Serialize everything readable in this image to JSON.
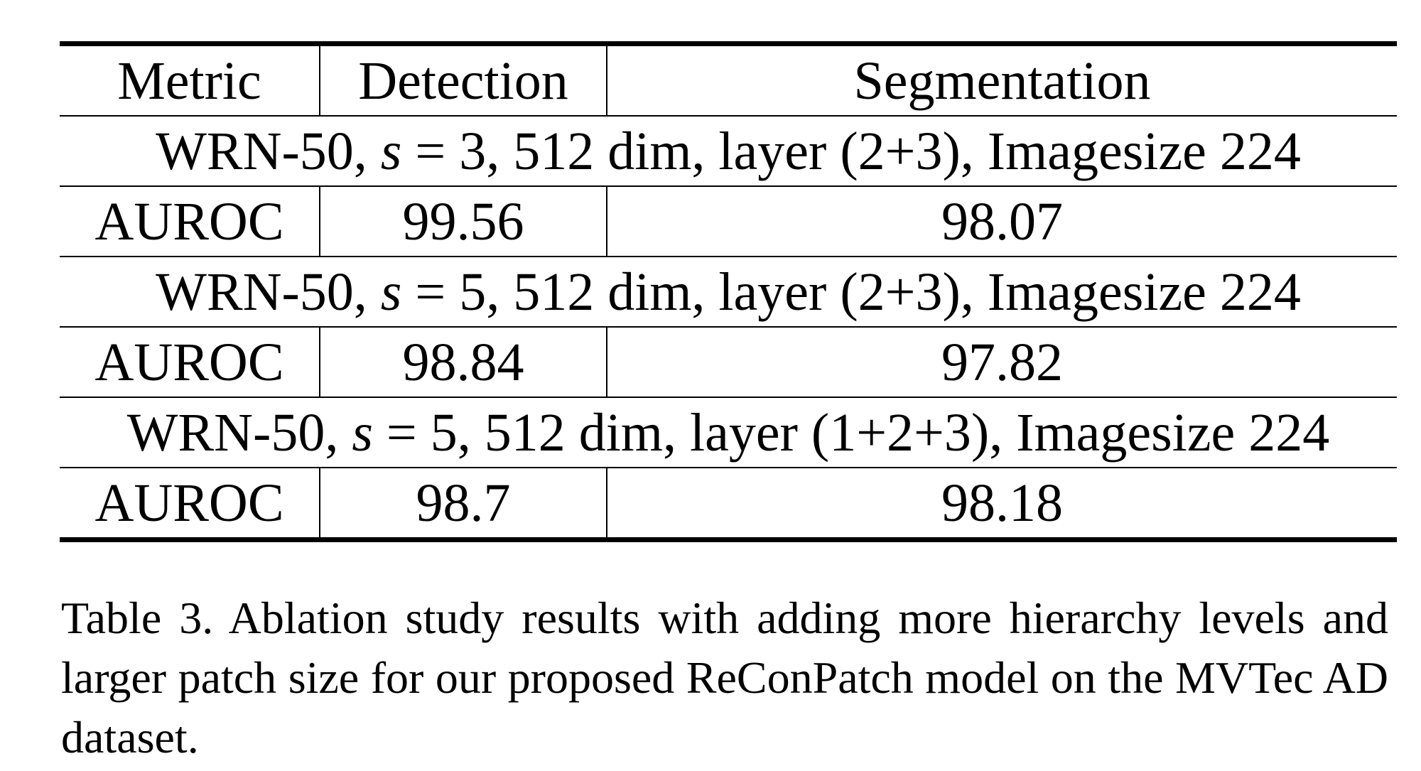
{
  "table": {
    "header": {
      "metric": "Metric",
      "detection": "Detection",
      "segmentation": "Segmentation"
    },
    "groups": [
      {
        "config_prefix": "WRN-50, ",
        "config_var": "s",
        "config_suffix": " = 3, 512 dim, layer (2+3), Imagesize 224",
        "metric": "AUROC",
        "detection": "99.56",
        "segmentation": "98.07",
        "best": false
      },
      {
        "config_prefix": "WRN-50, ",
        "config_var": "s",
        "config_suffix": " = 5, 512 dim, layer (2+3), Imagesize 224",
        "metric": "AUROC",
        "detection": "98.84",
        "segmentation": "97.82",
        "best": false
      },
      {
        "config_prefix": "WRN-50, ",
        "config_var": "s",
        "config_suffix": " = 5, 512 dim, layer (1+2+3), Imagesize 224",
        "metric": "AUROC",
        "detection": "98.7",
        "segmentation": "98.18",
        "best": true
      }
    ]
  },
  "caption": "Table 3. Ablation study results with adding more hierarchy levels and larger patch size for our proposed ReConPatch model on the MVTec AD dataset."
}
